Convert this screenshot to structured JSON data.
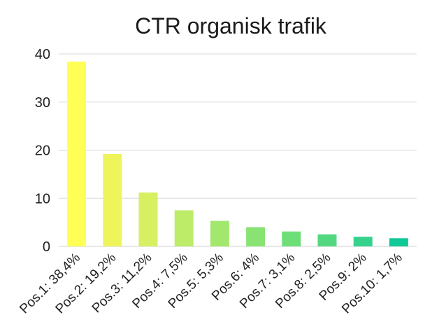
{
  "chart_data": {
    "type": "bar",
    "title": "CTR organisk trafik",
    "xlabel": "",
    "ylabel": "",
    "ylim": [
      0,
      40
    ],
    "yticks": [
      0,
      10,
      20,
      30,
      40
    ],
    "grid": true,
    "legend": "none",
    "categories": [
      "Pos.1: 38,4%",
      "Pos.2: 19,2%",
      "Pos.3: 11,2%",
      "Pos.4: 7,5%",
      "Pos.5: 5,3%",
      "Pos.6: 4%",
      "Pos.7: 3,1%",
      "Pos.8: 2,5%",
      "Pos.9: 2%",
      "Pos.10: 1,7%"
    ],
    "values": [
      38.4,
      19.2,
      11.2,
      7.5,
      5.3,
      4,
      3.1,
      2.5,
      2,
      1.7
    ],
    "colors": [
      "#ffff55",
      "#eef55a",
      "#d6f062",
      "#bdec68",
      "#a3e86e",
      "#88e373",
      "#6ede78",
      "#53d880",
      "#34d28a",
      "#0fc996"
    ]
  }
}
